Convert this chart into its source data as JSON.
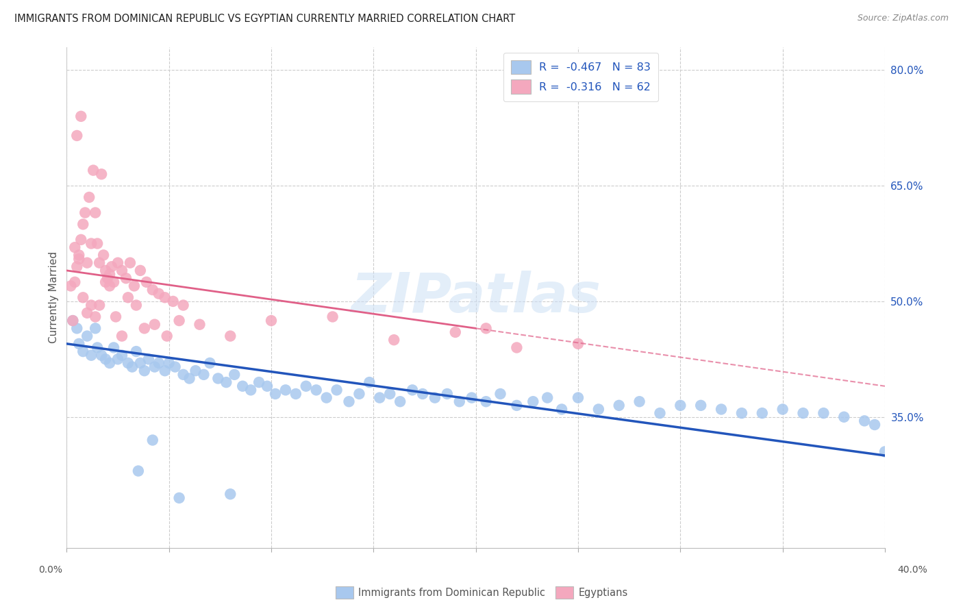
{
  "title": "IMMIGRANTS FROM DOMINICAN REPUBLIC VS EGYPTIAN CURRENTLY MARRIED CORRELATION CHART",
  "source": "Source: ZipAtlas.com",
  "ylabel": "Currently Married",
  "right_yticks": [
    35.0,
    50.0,
    65.0,
    80.0
  ],
  "xmin": 0.0,
  "xmax": 40.0,
  "ymin": 18.0,
  "ymax": 83.0,
  "legend_label1": "Immigrants from Dominican Republic",
  "legend_label2": "Egyptians",
  "blue_color": "#a8c8ee",
  "blue_dark": "#2255bb",
  "pink_color": "#f4a8be",
  "pink_dark": "#e06088",
  "watermark_color": "#cce0f5",
  "blue_R": -0.467,
  "blue_N": 83,
  "pink_R": -0.316,
  "pink_N": 62,
  "blue_scatter_x": [
    0.3,
    0.5,
    0.6,
    0.8,
    1.0,
    1.2,
    1.4,
    1.5,
    1.7,
    1.9,
    2.1,
    2.3,
    2.5,
    2.7,
    3.0,
    3.2,
    3.4,
    3.6,
    3.8,
    4.0,
    4.3,
    4.5,
    4.8,
    5.0,
    5.3,
    5.7,
    6.0,
    6.3,
    6.7,
    7.0,
    7.4,
    7.8,
    8.2,
    8.6,
    9.0,
    9.4,
    9.8,
    10.2,
    10.7,
    11.2,
    11.7,
    12.2,
    12.7,
    13.2,
    13.8,
    14.3,
    14.8,
    15.3,
    15.8,
    16.3,
    16.9,
    17.4,
    18.0,
    18.6,
    19.2,
    19.8,
    20.5,
    21.2,
    22.0,
    22.8,
    23.5,
    24.2,
    25.0,
    26.0,
    27.0,
    28.0,
    29.0,
    30.0,
    31.0,
    32.0,
    33.0,
    34.0,
    35.0,
    36.0,
    37.0,
    38.0,
    39.0,
    39.5,
    40.0,
    3.5,
    4.2,
    5.5,
    8.0
  ],
  "blue_scatter_y": [
    47.5,
    46.5,
    44.5,
    43.5,
    45.5,
    43.0,
    46.5,
    44.0,
    43.0,
    42.5,
    42.0,
    44.0,
    42.5,
    43.0,
    42.0,
    41.5,
    43.5,
    42.0,
    41.0,
    42.5,
    41.5,
    42.0,
    41.0,
    42.0,
    41.5,
    40.5,
    40.0,
    41.0,
    40.5,
    42.0,
    40.0,
    39.5,
    40.5,
    39.0,
    38.5,
    39.5,
    39.0,
    38.0,
    38.5,
    38.0,
    39.0,
    38.5,
    37.5,
    38.5,
    37.0,
    38.0,
    39.5,
    37.5,
    38.0,
    37.0,
    38.5,
    38.0,
    37.5,
    38.0,
    37.0,
    37.5,
    37.0,
    38.0,
    36.5,
    37.0,
    37.5,
    36.0,
    37.5,
    36.0,
    36.5,
    37.0,
    35.5,
    36.5,
    36.5,
    36.0,
    35.5,
    35.5,
    36.0,
    35.5,
    35.5,
    35.0,
    34.5,
    34.0,
    30.5,
    28.0,
    32.0,
    24.5,
    25.0
  ],
  "pink_scatter_x": [
    0.2,
    0.3,
    0.4,
    0.5,
    0.6,
    0.7,
    0.8,
    0.9,
    1.0,
    1.1,
    1.2,
    1.3,
    1.4,
    1.5,
    1.6,
    1.7,
    1.8,
    1.9,
    2.0,
    2.1,
    2.2,
    2.3,
    2.5,
    2.7,
    2.9,
    3.1,
    3.3,
    3.6,
    3.9,
    4.2,
    4.5,
    4.8,
    5.2,
    5.7,
    0.4,
    0.6,
    0.8,
    1.0,
    1.2,
    1.4,
    1.6,
    1.9,
    2.1,
    2.4,
    2.7,
    3.0,
    3.4,
    3.8,
    4.3,
    4.9,
    5.5,
    6.5,
    8.0,
    10.0,
    13.0,
    16.0,
    19.0,
    22.0,
    25.0,
    20.5,
    0.5,
    0.7
  ],
  "pink_scatter_y": [
    52.0,
    47.5,
    57.0,
    54.5,
    56.0,
    58.0,
    60.0,
    61.5,
    55.0,
    63.5,
    57.5,
    67.0,
    61.5,
    57.5,
    55.0,
    66.5,
    56.0,
    54.0,
    53.0,
    53.5,
    54.5,
    52.5,
    55.0,
    54.0,
    53.0,
    55.0,
    52.0,
    54.0,
    52.5,
    51.5,
    51.0,
    50.5,
    50.0,
    49.5,
    52.5,
    55.5,
    50.5,
    48.5,
    49.5,
    48.0,
    49.5,
    52.5,
    52.0,
    48.0,
    45.5,
    50.5,
    49.5,
    46.5,
    47.0,
    45.5,
    47.5,
    47.0,
    45.5,
    47.5,
    48.0,
    45.0,
    46.0,
    44.0,
    44.5,
    46.5,
    71.5,
    74.0
  ],
  "blue_trend_x0": 0.0,
  "blue_trend_x1": 40.0,
  "blue_trend_y0": 44.5,
  "blue_trend_y1": 30.0,
  "pink_solid_x0": 0.0,
  "pink_solid_x1": 20.0,
  "pink_solid_y0": 54.0,
  "pink_solid_y1": 46.5,
  "pink_dash_x0": 20.0,
  "pink_dash_x1": 40.0,
  "pink_dash_y0": 46.5,
  "pink_dash_y1": 39.0,
  "grid_xticks": [
    0,
    5,
    10,
    15,
    20,
    25,
    30,
    35,
    40
  ]
}
